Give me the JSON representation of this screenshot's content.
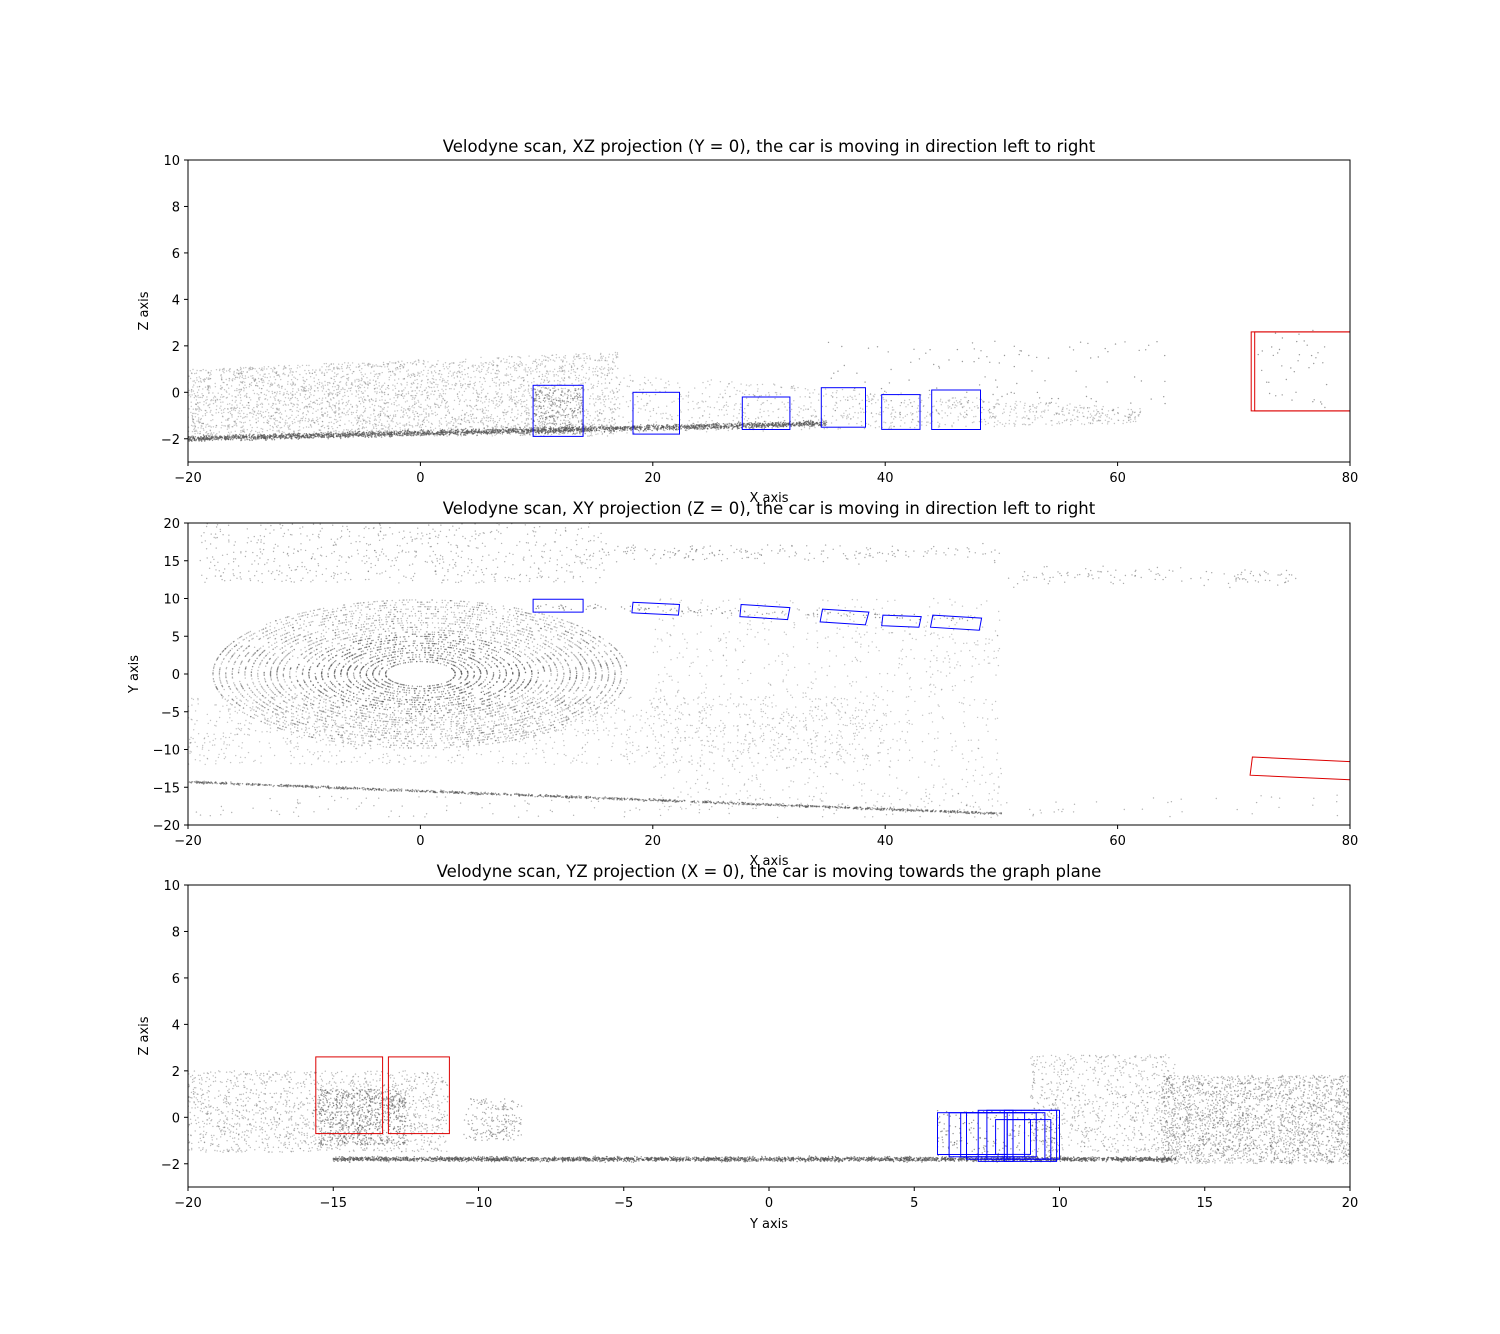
{
  "chart_data": [
    {
      "type": "scatter",
      "title": "Velodyne scan, XZ projection (Y = 0), the car is moving in direction left to right",
      "xlabel": "X axis",
      "ylabel": "Z axis",
      "xlim": [
        -20,
        80
      ],
      "ylim": [
        -3,
        10
      ],
      "xticks": [
        -20,
        0,
        20,
        40,
        60,
        80
      ],
      "yticks": [
        -2,
        0,
        2,
        4,
        6,
        8,
        10
      ],
      "grid": false,
      "point_color": "#555555",
      "boxes": [
        {
          "color": "#0000ff",
          "x": [
            9.7,
            14.0
          ],
          "y": [
            -1.9,
            0.3
          ]
        },
        {
          "color": "#0000ff",
          "x": [
            18.3,
            22.3
          ],
          "y": [
            -1.8,
            0.0
          ]
        },
        {
          "color": "#0000ff",
          "x": [
            27.7,
            31.8
          ],
          "y": [
            -1.6,
            -0.2
          ]
        },
        {
          "color": "#0000ff",
          "x": [
            34.5,
            38.3
          ],
          "y": [
            -1.5,
            0.2
          ]
        },
        {
          "color": "#0000ff",
          "x": [
            39.7,
            43.0
          ],
          "y": [
            -1.6,
            -0.1
          ]
        },
        {
          "color": "#0000ff",
          "x": [
            44.0,
            48.2
          ],
          "y": [
            -1.6,
            0.1
          ]
        },
        {
          "color": "#dd0000",
          "x": [
            71.5,
            80.0
          ],
          "y": [
            -0.8,
            2.6
          ]
        },
        {
          "color": "#dd0000",
          "x": [
            71.8,
            80.0
          ],
          "y": [
            -0.8,
            2.6
          ]
        }
      ]
    },
    {
      "type": "scatter",
      "title": "Velodyne scan, XY projection (Z = 0), the car is moving in direction left to right",
      "xlabel": "X axis",
      "ylabel": "Y axis",
      "xlim": [
        -20,
        80
      ],
      "ylim": [
        -20,
        20
      ],
      "xticks": [
        -20,
        0,
        20,
        40,
        60,
        80
      ],
      "yticks": [
        -20,
        -15,
        -10,
        -5,
        0,
        5,
        10,
        15,
        20
      ],
      "grid": false,
      "point_color": "#555555",
      "boxes": [
        {
          "color": "#0000ff",
          "poly": [
            [
              9.7,
              9.9
            ],
            [
              14.0,
              9.9
            ],
            [
              14.0,
              8.2
            ],
            [
              9.7,
              8.2
            ]
          ]
        },
        {
          "color": "#0000ff",
          "poly": [
            [
              18.3,
              9.5
            ],
            [
              22.3,
              9.2
            ],
            [
              22.2,
              7.8
            ],
            [
              18.2,
              8.1
            ]
          ]
        },
        {
          "color": "#0000ff",
          "poly": [
            [
              27.6,
              9.2
            ],
            [
              31.8,
              8.8
            ],
            [
              31.6,
              7.2
            ],
            [
              27.5,
              7.6
            ]
          ]
        },
        {
          "color": "#0000ff",
          "poly": [
            [
              34.6,
              8.6
            ],
            [
              38.6,
              8.2
            ],
            [
              38.3,
              6.5
            ],
            [
              34.4,
              6.9
            ]
          ]
        },
        {
          "color": "#0000ff",
          "poly": [
            [
              39.8,
              7.8
            ],
            [
              43.1,
              7.6
            ],
            [
              42.9,
              6.2
            ],
            [
              39.7,
              6.4
            ]
          ]
        },
        {
          "color": "#0000ff",
          "poly": [
            [
              44.1,
              7.8
            ],
            [
              48.3,
              7.4
            ],
            [
              48.1,
              5.8
            ],
            [
              43.9,
              6.2
            ]
          ]
        },
        {
          "color": "#dd0000",
          "poly": [
            [
              71.6,
              -11.0
            ],
            [
              80.0,
              -11.6
            ],
            [
              80.0,
              -14.0
            ],
            [
              71.4,
              -13.4
            ]
          ]
        }
      ]
    },
    {
      "type": "scatter",
      "title": "Velodyne scan, YZ projection (X = 0), the car is moving towards the graph plane",
      "xlabel": "Y axis",
      "ylabel": "Z axis",
      "xlim": [
        -20,
        20
      ],
      "ylim": [
        -3,
        10
      ],
      "xticks": [
        -20,
        -15,
        -10,
        -5,
        0,
        5,
        10,
        15,
        20
      ],
      "yticks": [
        -2,
        0,
        2,
        4,
        6,
        8,
        10
      ],
      "grid": false,
      "point_color": "#555555",
      "boxes": [
        {
          "color": "#dd0000",
          "x": [
            -15.6,
            -13.3
          ],
          "y": [
            -0.7,
            2.6
          ]
        },
        {
          "color": "#dd0000",
          "x": [
            -13.1,
            -11.0
          ],
          "y": [
            -0.7,
            2.6
          ]
        },
        {
          "color": "#0000ff",
          "x": [
            5.8,
            8.2
          ],
          "y": [
            -1.6,
            0.2
          ]
        },
        {
          "color": "#0000ff",
          "x": [
            6.2,
            8.8
          ],
          "y": [
            -1.7,
            0.2
          ]
        },
        {
          "color": "#0000ff",
          "x": [
            6.6,
            9.2
          ],
          "y": [
            -1.7,
            0.2
          ]
        },
        {
          "color": "#0000ff",
          "x": [
            6.8,
            9.5
          ],
          "y": [
            -1.8,
            0.2
          ]
        },
        {
          "color": "#0000ff",
          "x": [
            7.2,
            9.9
          ],
          "y": [
            -1.9,
            0.3
          ]
        },
        {
          "color": "#0000ff",
          "x": [
            7.5,
            10.0
          ],
          "y": [
            -1.8,
            0.3
          ]
        },
        {
          "color": "#0000ff",
          "x": [
            8.1,
            8.4
          ],
          "y": [
            -1.9,
            0.3
          ]
        },
        {
          "color": "#0000ff",
          "x": [
            8.2,
            9.7
          ],
          "y": [
            -1.8,
            -0.1
          ]
        },
        {
          "color": "#0000ff",
          "x": [
            7.8,
            9.0
          ],
          "y": [
            -1.6,
            -0.1
          ]
        }
      ]
    }
  ]
}
